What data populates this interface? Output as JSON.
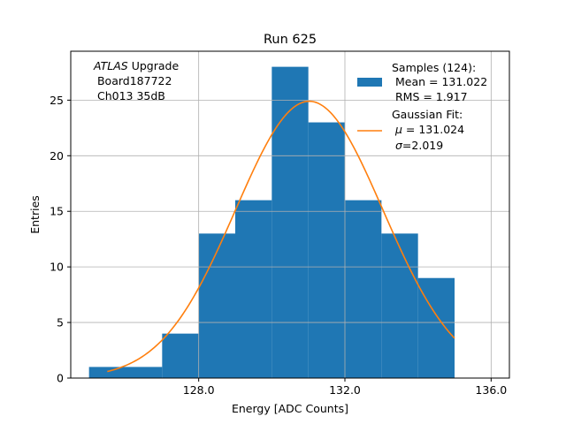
{
  "chart_data": {
    "type": "bar",
    "title": "Run 625",
    "xlabel": "Energy [ADC Counts]",
    "ylabel": "Entries",
    "xlim": [
      124.5,
      136.5
    ],
    "ylim": [
      0,
      29.4
    ],
    "xticks": [
      128.0,
      132.0,
      136.0
    ],
    "xtick_labels": [
      "128.0",
      "132.0",
      "136.0"
    ],
    "yticks": [
      0,
      5,
      10,
      15,
      20,
      25
    ],
    "ytick_labels": [
      "0",
      "5",
      "10",
      "15",
      "20",
      "25"
    ],
    "grid": true,
    "bin_edges": [
      125.0,
      126.0,
      127.0,
      128.0,
      129.0,
      130.0,
      131.0,
      132.0,
      133.0,
      134.0,
      135.0
    ],
    "counts": [
      1,
      1,
      4,
      13,
      16,
      28,
      23,
      16,
      13,
      9
    ],
    "bar_color": "#1f77b4",
    "fit": {
      "mu": 131.024,
      "sigma": 2.019,
      "peak": 24.9,
      "x_range": [
        125.5,
        135.0
      ],
      "color": "#ff7f0e"
    },
    "annotation": {
      "line1_italic": "ATLAS",
      "line1_rest": " Upgrade",
      "line2": " Board187722",
      "line3": " Ch013 35dB"
    },
    "legend": {
      "placement": "top-right",
      "samples_title": "Samples (124):",
      "samples_mean": " Mean = 131.022",
      "samples_rms": " RMS = 1.917",
      "fit_title": "Gaussian Fit:",
      "fit_mu_symbol": "μ",
      "fit_mu_value": " = 131.024",
      "fit_sigma_symbol": "σ",
      "fit_sigma_value": "=2.019"
    }
  }
}
